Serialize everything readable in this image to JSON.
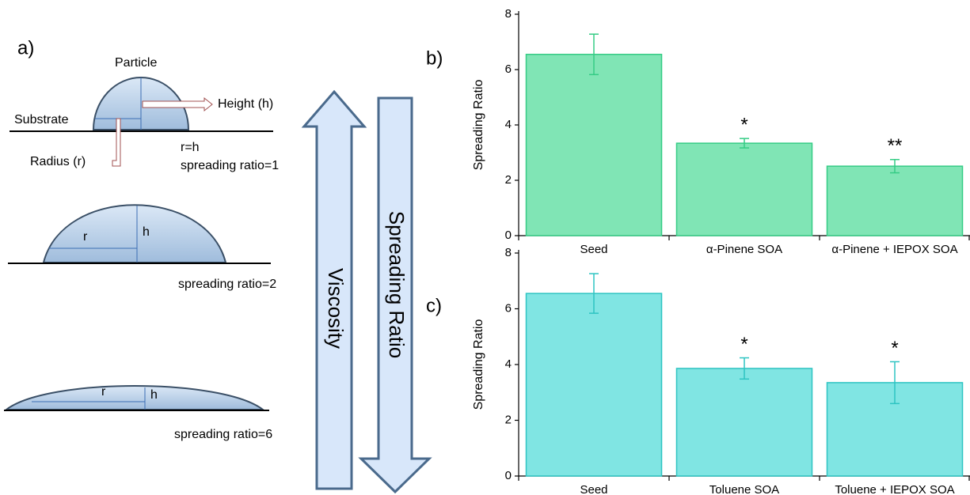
{
  "diagram": {
    "label": "a)",
    "particle": "Particle",
    "height": "Height (h)",
    "substrate": "Substrate",
    "radius": "Radius (r)",
    "r_eq_h": "r=h",
    "ratio1": "spreading ratio=1",
    "r2": "r",
    "h2": "h",
    "ratio2": "spreading ratio=2",
    "r3": "r",
    "h3": "h",
    "ratio6": "spreading ratio=6",
    "viscosity": "Viscosity",
    "spreading": "Spreading Ratio"
  },
  "chart_data": [
    {
      "type": "bar",
      "label": "b)",
      "y_label": "Spreading Ratio",
      "categories": [
        "Seed",
        "α-Pinene SOA",
        "α-Pinene + IEPOX SOA"
      ],
      "values": [
        6.55,
        3.34,
        2.51
      ],
      "errors": [
        0.73,
        0.17,
        0.24
      ],
      "annotations": [
        null,
        "*",
        "**"
      ],
      "color": "#80e5b5",
      "edge_color": "#35cc85",
      "ylim": [
        0,
        8
      ],
      "yticks": [
        0,
        2,
        4,
        6,
        8
      ]
    },
    {
      "type": "bar",
      "label": "c)",
      "y_label": "Spreading Ratio",
      "categories": [
        "Seed",
        "Toluene SOA",
        "Toluene + IEPOX SOA"
      ],
      "values": [
        6.55,
        3.86,
        3.35
      ],
      "errors": [
        0.71,
        0.38,
        0.75
      ],
      "annotations": [
        null,
        "*",
        "*"
      ],
      "color": "#80e5e3",
      "edge_color": "#2ec4c2",
      "ylim": [
        0,
        8
      ],
      "yticks": [
        0,
        2,
        4,
        6,
        8
      ]
    }
  ]
}
